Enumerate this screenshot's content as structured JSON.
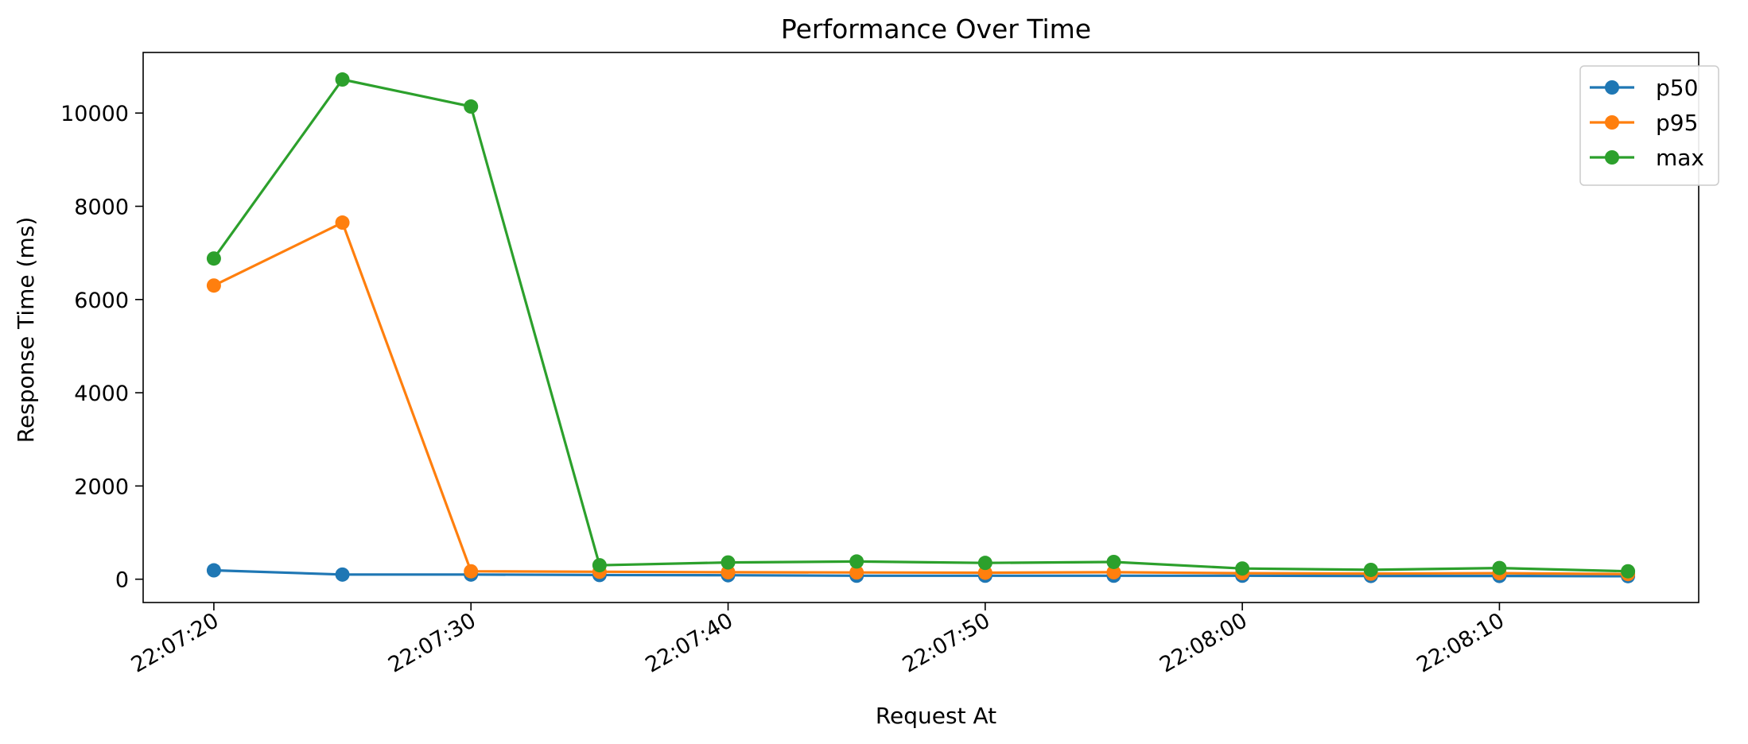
{
  "chart_data": {
    "type": "line",
    "title": "Performance Over Time",
    "xlabel": "Request At",
    "ylabel": "Response Time (ms)",
    "x": [
      "22:07:20",
      "22:07:25",
      "22:07:30",
      "22:07:35",
      "22:07:40",
      "22:07:45",
      "22:07:50",
      "22:07:55",
      "22:08:00",
      "22:08:05",
      "22:08:10",
      "22:08:15"
    ],
    "x_ticks": [
      "22:07:20",
      "22:07:30",
      "22:07:40",
      "22:07:50",
      "22:08:00",
      "22:08:10"
    ],
    "y_ticks": [
      0,
      2000,
      4000,
      6000,
      8000,
      10000
    ],
    "ylim": [
      -500,
      11300
    ],
    "grid": false,
    "legend_position": "top-right",
    "series": [
      {
        "name": "p50",
        "color": "#1f77b4",
        "values": [
          190,
          100,
          100,
          90,
          85,
          75,
          75,
          75,
          75,
          70,
          70,
          65
        ]
      },
      {
        "name": "p95",
        "color": "#ff7f0e",
        "values": [
          6300,
          7650,
          170,
          160,
          150,
          145,
          140,
          150,
          130,
          120,
          130,
          110
        ]
      },
      {
        "name": "max",
        "color": "#2ca02c",
        "values": [
          6880,
          10720,
          10140,
          300,
          360,
          380,
          350,
          370,
          230,
          200,
          240,
          170
        ]
      }
    ]
  }
}
